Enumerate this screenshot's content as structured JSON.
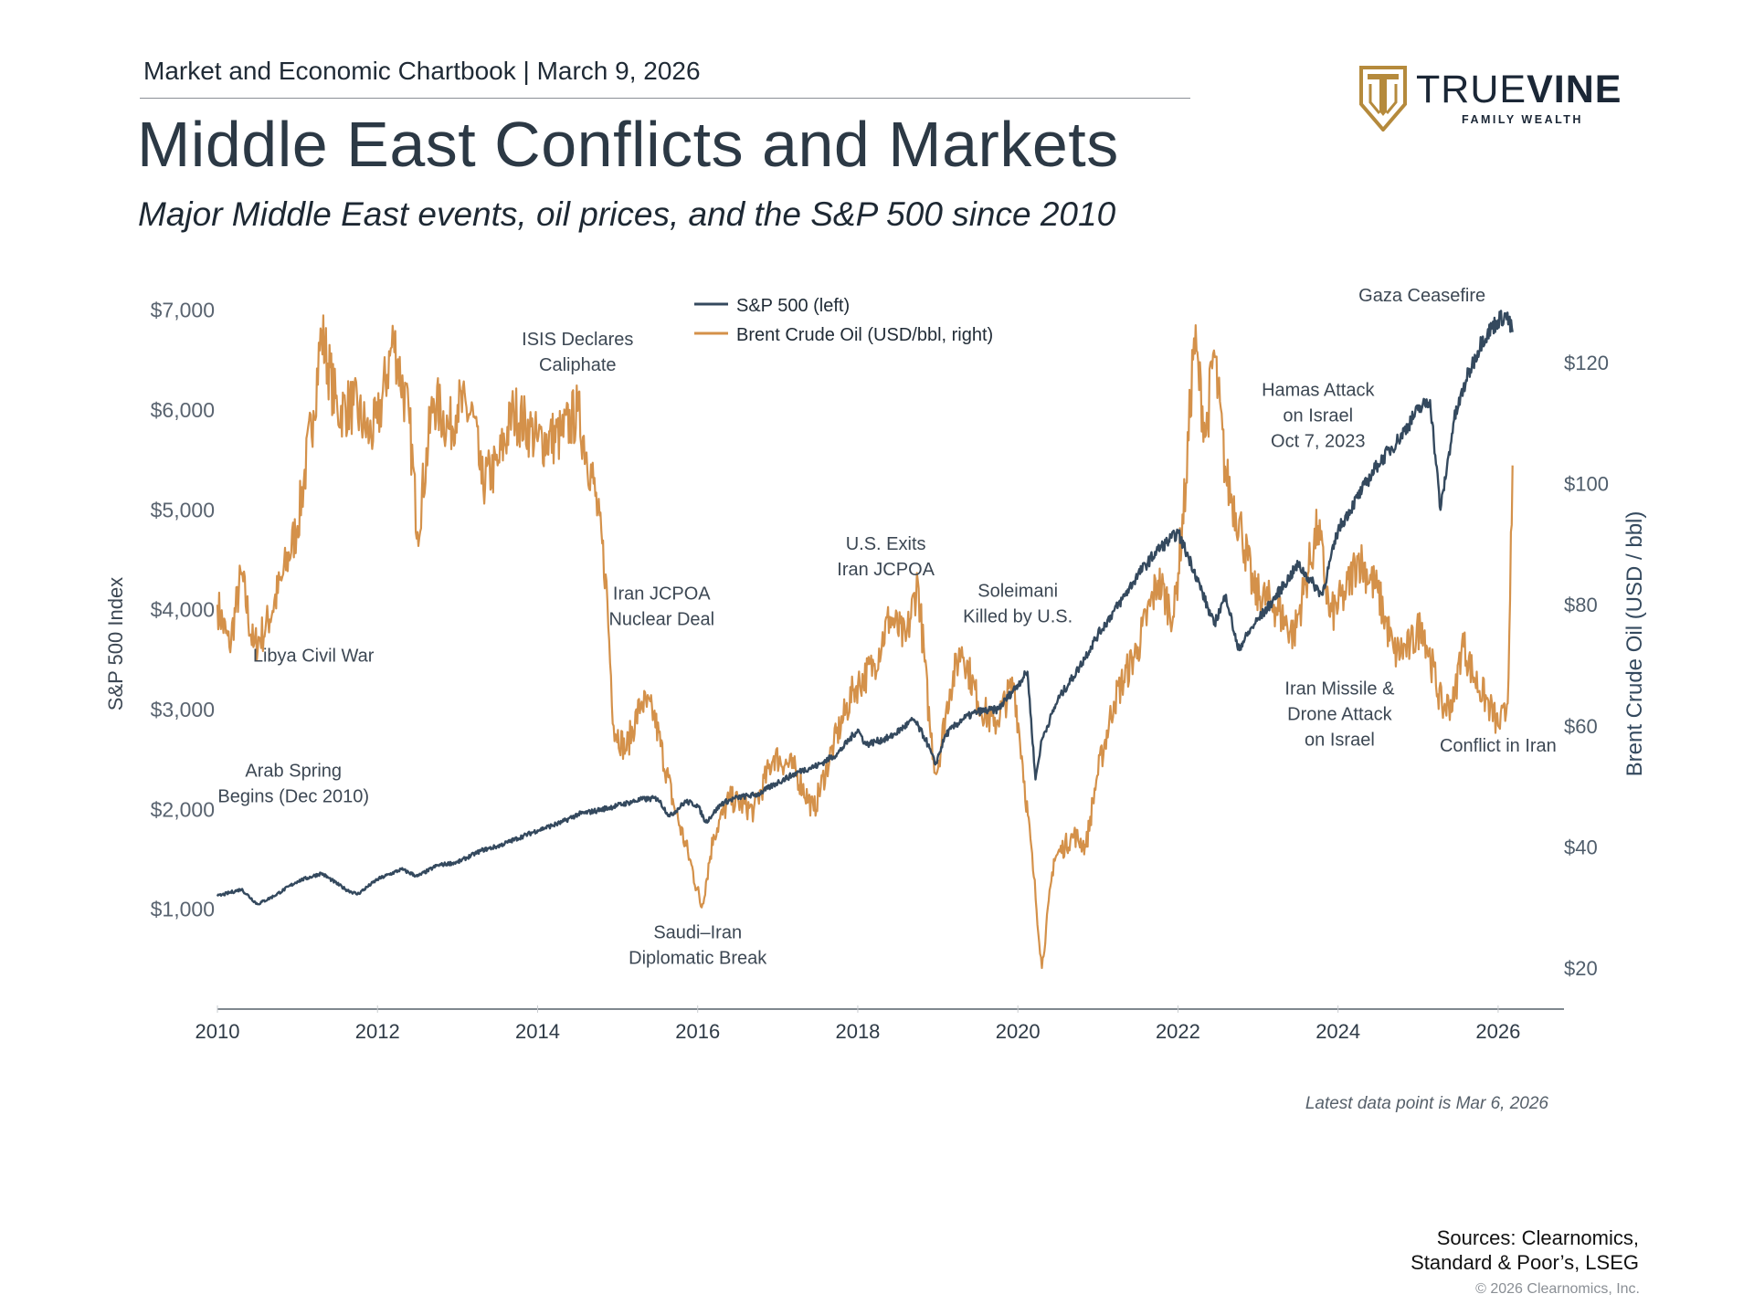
{
  "header": {
    "publication": "Market and Economic Chartbook | March 9, 2026",
    "title": "Middle East Conflicts and Markets",
    "subtitle": "Major Middle East events, oil prices, and the S&P 500 since 2010"
  },
  "logo": {
    "word_light": "TRUE",
    "word_bold": "VINE",
    "tagline": "FAMILY WEALTH"
  },
  "colors": {
    "sp500": "#34495e",
    "brent": "#d4914a",
    "text": "#2e3a46",
    "axis": "#5a6470",
    "logo_gold": "#b58a3c",
    "logo_navy": "#1b2736"
  },
  "chart_data": {
    "type": "line",
    "title": "",
    "xlabel": "",
    "ylabel_left": "S&P 500 Index",
    "ylabel_right": "Brent Crude Oil (USD / bbl)",
    "x_range": [
      2010.0,
      2026.8
    ],
    "x_ticks": [
      2010,
      2012,
      2014,
      2016,
      2018,
      2020,
      2022,
      2024,
      2026
    ],
    "x_tick_labels": [
      "2010",
      "2012",
      "2014",
      "2016",
      "2018",
      "2020",
      "2022",
      "2024",
      "2026"
    ],
    "ylim_left": [
      0,
      7500
    ],
    "y_ticks_left": [
      1000,
      2000,
      3000,
      4000,
      5000,
      6000,
      7000
    ],
    "y_tick_labels_left": [
      "$1,000",
      "$2,000",
      "$3,000",
      "$4,000",
      "$5,000",
      "$6,000",
      "$7,000"
    ],
    "ylim_right": [
      0,
      140
    ],
    "y_ticks_right": [
      20,
      40,
      60,
      80,
      100,
      120
    ],
    "y_tick_labels_right": [
      "$20",
      "$40",
      "$60",
      "$80",
      "$100",
      "$120"
    ],
    "grid": false,
    "legend_position": "top-center",
    "series": [
      {
        "name": "S&P 500 (left)",
        "axis": "left",
        "points": [
          [
            2010.0,
            1130
          ],
          [
            2010.3,
            1200
          ],
          [
            2010.5,
            1050
          ],
          [
            2010.7,
            1130
          ],
          [
            2011.0,
            1280
          ],
          [
            2011.3,
            1360
          ],
          [
            2011.6,
            1200
          ],
          [
            2011.75,
            1150
          ],
          [
            2012.0,
            1300
          ],
          [
            2012.3,
            1400
          ],
          [
            2012.5,
            1330
          ],
          [
            2012.75,
            1440
          ],
          [
            2013.0,
            1470
          ],
          [
            2013.3,
            1590
          ],
          [
            2013.5,
            1630
          ],
          [
            2013.75,
            1710
          ],
          [
            2014.0,
            1790
          ],
          [
            2014.3,
            1870
          ],
          [
            2014.5,
            1950
          ],
          [
            2014.75,
            1990
          ],
          [
            2015.0,
            2040
          ],
          [
            2015.3,
            2100
          ],
          [
            2015.5,
            2110
          ],
          [
            2015.65,
            1930
          ],
          [
            2015.85,
            2080
          ],
          [
            2016.0,
            2040
          ],
          [
            2016.1,
            1870
          ],
          [
            2016.3,
            2060
          ],
          [
            2016.5,
            2120
          ],
          [
            2016.75,
            2150
          ],
          [
            2017.0,
            2270
          ],
          [
            2017.3,
            2390
          ],
          [
            2017.5,
            2440
          ],
          [
            2017.75,
            2560
          ],
          [
            2018.0,
            2800
          ],
          [
            2018.1,
            2650
          ],
          [
            2018.4,
            2720
          ],
          [
            2018.7,
            2900
          ],
          [
            2018.85,
            2700
          ],
          [
            2018.97,
            2450
          ],
          [
            2019.1,
            2750
          ],
          [
            2019.3,
            2900
          ],
          [
            2019.5,
            2980
          ],
          [
            2019.75,
            3000
          ],
          [
            2020.0,
            3250
          ],
          [
            2020.12,
            3380
          ],
          [
            2020.22,
            2300
          ],
          [
            2020.3,
            2700
          ],
          [
            2020.5,
            3100
          ],
          [
            2020.75,
            3400
          ],
          [
            2021.0,
            3750
          ],
          [
            2021.3,
            4100
          ],
          [
            2021.5,
            4350
          ],
          [
            2021.75,
            4600
          ],
          [
            2022.0,
            4770
          ],
          [
            2022.2,
            4400
          ],
          [
            2022.45,
            3850
          ],
          [
            2022.6,
            4150
          ],
          [
            2022.75,
            3600
          ],
          [
            2022.95,
            3850
          ],
          [
            2023.15,
            4050
          ],
          [
            2023.5,
            4450
          ],
          [
            2023.8,
            4150
          ],
          [
            2024.0,
            4800
          ],
          [
            2024.3,
            5200
          ],
          [
            2024.5,
            5460
          ],
          [
            2024.75,
            5700
          ],
          [
            2025.0,
            6000
          ],
          [
            2025.15,
            6100
          ],
          [
            2025.28,
            5000
          ],
          [
            2025.45,
            5900
          ],
          [
            2025.6,
            6300
          ],
          [
            2025.8,
            6700
          ],
          [
            2026.0,
            6900
          ],
          [
            2026.1,
            6950
          ],
          [
            2026.18,
            6780
          ]
        ]
      },
      {
        "name": "Brent Crude Oil (USD/bbl, right)",
        "axis": "right",
        "points": [
          [
            2010.0,
            80
          ],
          [
            2010.15,
            73
          ],
          [
            2010.3,
            85
          ],
          [
            2010.45,
            73
          ],
          [
            2010.6,
            76
          ],
          [
            2010.8,
            84
          ],
          [
            2011.0,
            93
          ],
          [
            2011.2,
            112
          ],
          [
            2011.3,
            125
          ],
          [
            2011.5,
            112
          ],
          [
            2011.7,
            113
          ],
          [
            2011.9,
            108
          ],
          [
            2012.0,
            110
          ],
          [
            2012.2,
            124
          ],
          [
            2012.4,
            110
          ],
          [
            2012.5,
            92
          ],
          [
            2012.7,
            114
          ],
          [
            2012.9,
            109
          ],
          [
            2013.0,
            113
          ],
          [
            2013.2,
            111
          ],
          [
            2013.3,
            100
          ],
          [
            2013.5,
            103
          ],
          [
            2013.7,
            112
          ],
          [
            2013.9,
            109
          ],
          [
            2014.0,
            107
          ],
          [
            2014.3,
            108
          ],
          [
            2014.5,
            112
          ],
          [
            2014.7,
            100
          ],
          [
            2014.85,
            85
          ],
          [
            2014.95,
            60
          ],
          [
            2015.1,
            56
          ],
          [
            2015.3,
            64
          ],
          [
            2015.45,
            62
          ],
          [
            2015.7,
            47
          ],
          [
            2015.9,
            38
          ],
          [
            2016.05,
            30
          ],
          [
            2016.2,
            42
          ],
          [
            2016.4,
            48
          ],
          [
            2016.7,
            46
          ],
          [
            2016.95,
            55
          ],
          [
            2017.2,
            53
          ],
          [
            2017.45,
            46
          ],
          [
            2017.7,
            57
          ],
          [
            2017.95,
            66
          ],
          [
            2018.2,
            70
          ],
          [
            2018.4,
            78
          ],
          [
            2018.6,
            74
          ],
          [
            2018.75,
            84
          ],
          [
            2018.9,
            60
          ],
          [
            2018.98,
            52
          ],
          [
            2019.15,
            66
          ],
          [
            2019.3,
            73
          ],
          [
            2019.5,
            64
          ],
          [
            2019.7,
            60
          ],
          [
            2019.95,
            67
          ],
          [
            2020.05,
            55
          ],
          [
            2020.2,
            35
          ],
          [
            2020.3,
            20
          ],
          [
            2020.45,
            38
          ],
          [
            2020.7,
            42
          ],
          [
            2020.85,
            40
          ],
          [
            2020.98,
            51
          ],
          [
            2021.2,
            64
          ],
          [
            2021.5,
            73
          ],
          [
            2021.75,
            84
          ],
          [
            2021.95,
            78
          ],
          [
            2022.1,
            100
          ],
          [
            2022.2,
            124
          ],
          [
            2022.35,
            108
          ],
          [
            2022.45,
            122
          ],
          [
            2022.6,
            101
          ],
          [
            2022.8,
            92
          ],
          [
            2022.95,
            82
          ],
          [
            2023.2,
            80
          ],
          [
            2023.45,
            75
          ],
          [
            2023.6,
            84
          ],
          [
            2023.75,
            93
          ],
          [
            2023.9,
            78
          ],
          [
            2024.1,
            82
          ],
          [
            2024.25,
            88
          ],
          [
            2024.5,
            82
          ],
          [
            2024.7,
            72
          ],
          [
            2024.9,
            73
          ],
          [
            2025.05,
            77
          ],
          [
            2025.3,
            63
          ],
          [
            2025.45,
            64
          ],
          [
            2025.55,
            74
          ],
          [
            2025.7,
            68
          ],
          [
            2025.9,
            63
          ],
          [
            2026.0,
            60
          ],
          [
            2026.1,
            62
          ],
          [
            2026.13,
            68
          ],
          [
            2026.16,
            92
          ],
          [
            2026.18,
            103
          ]
        ]
      }
    ],
    "annotations": [
      {
        "text": "Libya Civil War",
        "x": 2011.2,
        "y": 3480,
        "axis": "left"
      },
      {
        "text": "Arab Spring\nBegins (Dec 2010)",
        "x": 2010.95,
        "y": 2330,
        "axis": "left"
      },
      {
        "text": "ISIS Declares\nCaliphate",
        "x": 2014.5,
        "y": 6650,
        "axis": "left"
      },
      {
        "text": "Iran JCPOA\nNuclear Deal",
        "x": 2015.55,
        "y": 4100,
        "axis": "left"
      },
      {
        "text": "Saudi–Iran\nDiplomatic Break",
        "x": 2016.0,
        "y": 710,
        "axis": "left"
      },
      {
        "text": "U.S. Exits\nIran JCPOA",
        "x": 2018.35,
        "y": 4600,
        "axis": "left"
      },
      {
        "text": "Soleimani\nKilled by U.S.",
        "x": 2020.0,
        "y": 4130,
        "axis": "left"
      },
      {
        "text": "Hamas Attack\non Israel\nOct 7, 2023",
        "x": 2023.75,
        "y": 6140,
        "axis": "left"
      },
      {
        "text": "Gaza Ceasefire",
        "x": 2025.05,
        "y": 7090,
        "axis": "left"
      },
      {
        "text": "Iran Missile &\nDrone Attack\non Israel",
        "x": 2024.02,
        "y": 3150,
        "axis": "left"
      },
      {
        "text": "Conflict in Iran",
        "x": 2026.0,
        "y": 2580,
        "axis": "left"
      }
    ]
  },
  "footer": {
    "latest": "Latest data point is Mar 6, 2026",
    "sources_line1": "Sources: Clearnomics,",
    "sources_line2": "Standard & Poor’s, LSEG",
    "copyright": "© 2026 Clearnomics, Inc."
  }
}
